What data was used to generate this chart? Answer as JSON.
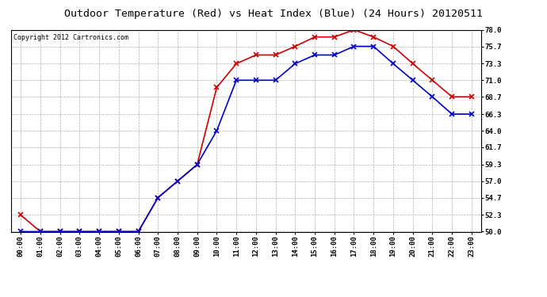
{
  "title": "Outdoor Temperature (Red) vs Heat Index (Blue) (24 Hours) 20120511",
  "copyright": "Copyright 2012 Cartronics.com",
  "x_labels": [
    "00:00",
    "01:00",
    "02:00",
    "03:00",
    "04:00",
    "05:00",
    "06:00",
    "07:00",
    "08:00",
    "09:00",
    "10:00",
    "11:00",
    "12:00",
    "13:00",
    "14:00",
    "15:00",
    "16:00",
    "17:00",
    "18:00",
    "19:00",
    "20:00",
    "21:00",
    "22:00",
    "23:00"
  ],
  "temp_red": [
    52.3,
    50.0,
    50.0,
    50.0,
    50.0,
    50.0,
    50.0,
    54.7,
    57.0,
    59.3,
    70.0,
    73.3,
    74.5,
    74.5,
    75.7,
    77.0,
    77.0,
    78.0,
    77.0,
    75.7,
    73.3,
    71.0,
    68.7,
    68.7
  ],
  "heat_blue": [
    50.0,
    50.0,
    50.0,
    50.0,
    50.0,
    50.0,
    50.0,
    54.7,
    57.0,
    59.3,
    64.0,
    71.0,
    71.0,
    71.0,
    73.3,
    74.5,
    74.5,
    75.7,
    75.7,
    73.3,
    71.0,
    68.7,
    66.3,
    66.3
  ],
  "ylim_min": 50.0,
  "ylim_max": 78.0,
  "y_ticks": [
    50.0,
    52.3,
    54.7,
    57.0,
    59.3,
    61.7,
    64.0,
    66.3,
    68.7,
    71.0,
    73.3,
    75.7,
    78.0
  ],
  "red_color": "#cc0000",
  "blue_color": "#0000cc",
  "bg_color": "#ffffff",
  "grid_color": "#b0b0b0",
  "title_fontsize": 9.5,
  "tick_fontsize": 6.5,
  "copyright_fontsize": 6
}
